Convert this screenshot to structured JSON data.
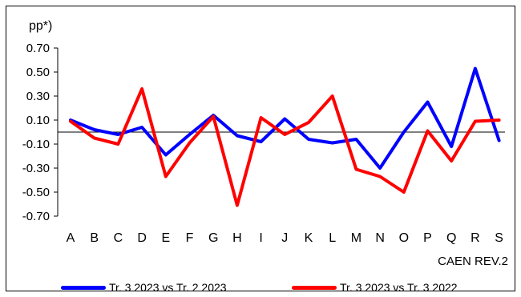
{
  "chart_data": {
    "type": "line",
    "ylabel": "pp*)",
    "xlabel": "CAEN REV.2",
    "categories": [
      "A",
      "B",
      "C",
      "D",
      "E",
      "F",
      "G",
      "H",
      "I",
      "J",
      "K",
      "L",
      "M",
      "N",
      "O",
      "P",
      "Q",
      "R",
      "S"
    ],
    "ylim": [
      -0.7,
      0.7
    ],
    "yticks": [
      "0.70",
      "0.50",
      "0.30",
      "0.10",
      "-0.10",
      "-0.30",
      "-0.50",
      "-0.70"
    ],
    "grid": false,
    "legend_position": "bottom",
    "series": [
      {
        "name": "Tr. 3 2023 vs Tr. 2 2023",
        "color": "#0000FF",
        "values": [
          0.1,
          0.02,
          -0.02,
          0.04,
          -0.19,
          -0.02,
          0.14,
          -0.03,
          -0.08,
          0.11,
          -0.06,
          -0.09,
          -0.06,
          -0.3,
          0.0,
          0.25,
          -0.12,
          0.53,
          -0.07
        ]
      },
      {
        "name": "Tr. 3 2023 vs Tr. 3 2022",
        "color": "#FF0000",
        "values": [
          0.09,
          -0.05,
          -0.1,
          0.36,
          -0.37,
          -0.09,
          0.13,
          -0.61,
          0.12,
          -0.02,
          0.08,
          0.3,
          -0.31,
          -0.37,
          -0.5,
          0.01,
          -0.24,
          0.09,
          0.1
        ]
      }
    ]
  }
}
